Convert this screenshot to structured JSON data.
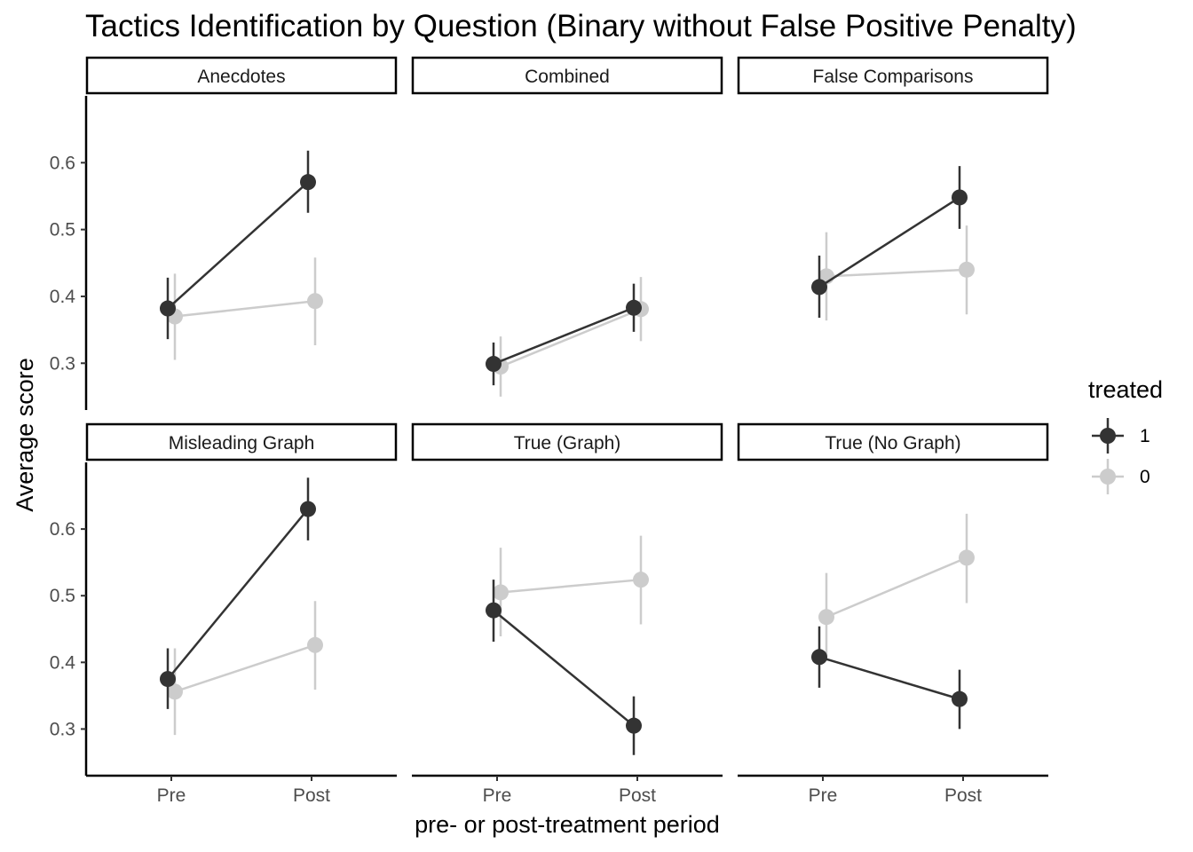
{
  "chart_data": {
    "type": "line",
    "title": "Tactics Identification by Question (Binary without False Positive Penalty)",
    "xlabel": "pre- or post-treatment period",
    "ylabel": "Average score",
    "x_categories": [
      "Pre",
      "Post"
    ],
    "ylim": [
      0.23,
      0.7
    ],
    "y_ticks": [
      0.3,
      0.4,
      0.5,
      0.6
    ],
    "y_tick_labels": [
      "0.3",
      "0.4",
      "0.5",
      "0.6"
    ],
    "grid": false,
    "legend": {
      "title": "treated",
      "placement": "right",
      "entries": [
        {
          "label": "1",
          "color": "#333333"
        },
        {
          "label": "0",
          "color": "#cccccc"
        }
      ]
    },
    "facets": [
      {
        "label": "Anecdotes",
        "series": [
          {
            "name": "1",
            "values": [
              0.382,
              0.571
            ],
            "lower": [
              0.336,
              0.525
            ],
            "upper": [
              0.428,
              0.618
            ]
          },
          {
            "name": "0",
            "values": [
              0.37,
              0.393
            ],
            "lower": [
              0.305,
              0.327
            ],
            "upper": [
              0.434,
              0.458
            ]
          }
        ]
      },
      {
        "label": "Combined",
        "series": [
          {
            "name": "1",
            "values": [
              0.299,
              0.383
            ],
            "lower": [
              0.267,
              0.347
            ],
            "upper": [
              0.331,
              0.419
            ]
          },
          {
            "name": "0",
            "values": [
              0.295,
              0.381
            ],
            "lower": [
              0.25,
              0.333
            ],
            "upper": [
              0.34,
              0.429
            ]
          }
        ]
      },
      {
        "label": "False Comparisons",
        "series": [
          {
            "name": "1",
            "values": [
              0.414,
              0.548
            ],
            "lower": [
              0.368,
              0.501
            ],
            "upper": [
              0.461,
              0.595
            ]
          },
          {
            "name": "0",
            "values": [
              0.43,
              0.44
            ],
            "lower": [
              0.364,
              0.373
            ],
            "upper": [
              0.496,
              0.506
            ]
          }
        ]
      },
      {
        "label": "Misleading Graph",
        "series": [
          {
            "name": "1",
            "values": [
              0.375,
              0.63
            ],
            "lower": [
              0.33,
              0.583
            ],
            "upper": [
              0.421,
              0.677
            ]
          },
          {
            "name": "0",
            "values": [
              0.356,
              0.426
            ],
            "lower": [
              0.291,
              0.359
            ],
            "upper": [
              0.421,
              0.492
            ]
          }
        ]
      },
      {
        "label": "True (Graph)",
        "series": [
          {
            "name": "1",
            "values": [
              0.478,
              0.305
            ],
            "lower": [
              0.431,
              0.261
            ],
            "upper": [
              0.524,
              0.349
            ]
          },
          {
            "name": "0",
            "values": [
              0.505,
              0.524
            ],
            "lower": [
              0.439,
              0.457
            ],
            "upper": [
              0.572,
              0.59
            ]
          }
        ]
      },
      {
        "label": "True (No Graph)",
        "series": [
          {
            "name": "1",
            "values": [
              0.408,
              0.345
            ],
            "lower": [
              0.362,
              0.3
            ],
            "upper": [
              0.454,
              0.389
            ]
          },
          {
            "name": "0",
            "values": [
              0.468,
              0.557
            ],
            "lower": [
              0.402,
              0.489
            ],
            "upper": [
              0.534,
              0.623
            ]
          }
        ]
      }
    ]
  }
}
